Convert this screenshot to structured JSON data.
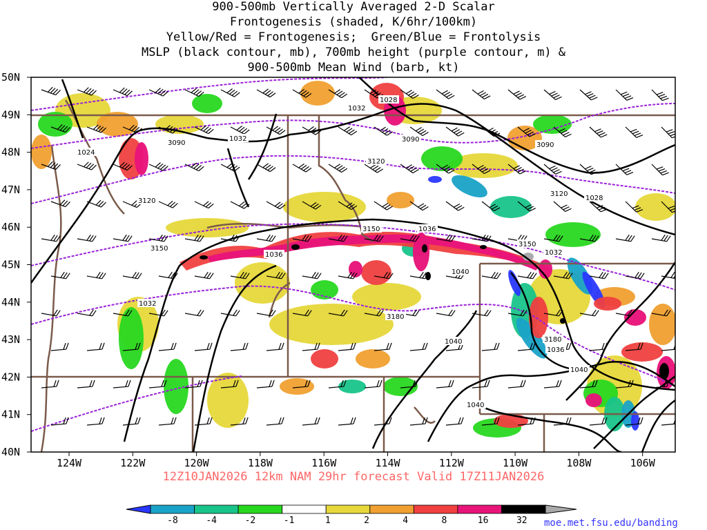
{
  "title": {
    "line1": "900-500mb Vertically Averaged 2-D Scalar",
    "line2": "Frontogenesis (shaded, K/6hr/100km)",
    "line3": "Yellow/Red = Frontogenesis;  Green/Blue = Frontolysis",
    "line4": "MSLP (black contour, mb), 700mb height (purple contour, m) &",
    "line5": "900-500mb Mean Wind (barb, kt)"
  },
  "axes": {
    "lat_labels": [
      "50N",
      "49N",
      "48N",
      "47N",
      "46N",
      "45N",
      "44N",
      "43N",
      "42N",
      "41N",
      "40N"
    ],
    "lon_labels": [
      "124W",
      "122W",
      "120W",
      "118W",
      "116W",
      "114W",
      "112W",
      "110W",
      "108W",
      "106W"
    ]
  },
  "contour_labels": {
    "mslp": [
      "1028",
      "1032",
      "1032",
      "1024",
      "1036",
      "1036",
      "1040",
      "1032",
      "1032",
      "1036",
      "1040",
      "1040",
      "1040",
      "1028"
    ],
    "height": [
      "3090",
      "3090",
      "3090",
      "3120",
      "3120",
      "3120",
      "3150",
      "3150",
      "3150",
      "3180",
      "3180"
    ]
  },
  "footer": {
    "run_info": "12Z10JAN2026 12km NAM 29hr forecast Valid 17Z11JAN2026"
  },
  "colorbar": {
    "labels": [
      "-8",
      "-4",
      "-2",
      "-1",
      "1",
      "2",
      "4",
      "8",
      "16",
      "32"
    ],
    "colors": [
      "#2a38ff",
      "#1aa3c8",
      "#18c48a",
      "#28d820",
      "#ffffff",
      "#e6d83a",
      "#f0a030",
      "#f04040",
      "#e8147a",
      "#000000",
      "#aaaaaa"
    ]
  },
  "credit": "moe.met.fsu.edu/banding"
}
